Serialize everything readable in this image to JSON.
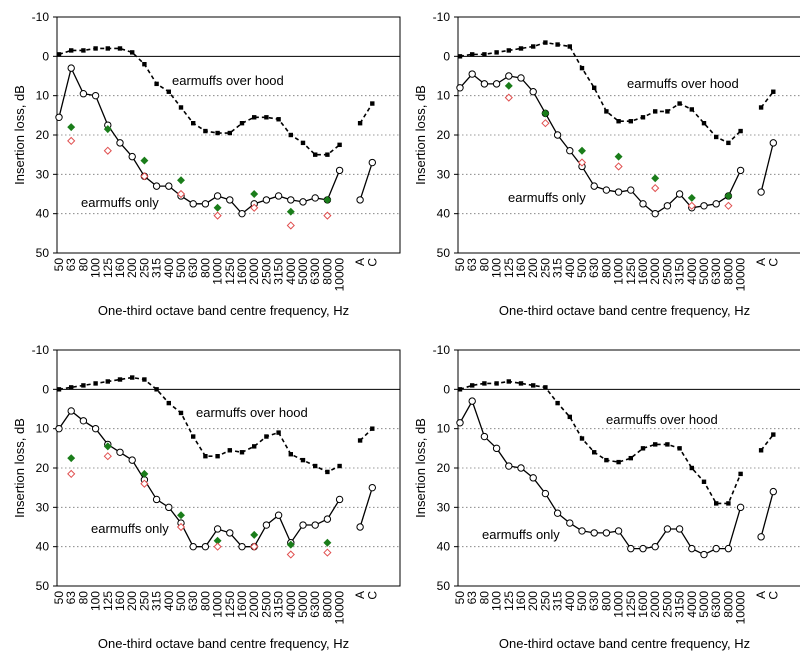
{
  "chart_data": [
    {
      "type": "line",
      "x": [
        "50",
        "63",
        "80",
        "100",
        "125",
        "160",
        "200",
        "250",
        "315",
        "400",
        "500",
        "630",
        "800",
        "1000",
        "1250",
        "1600",
        "2000",
        "2500",
        "3150",
        "4000",
        "5000",
        "6300",
        "8000",
        "10000"
      ],
      "extra_categories": [
        "A",
        "C"
      ],
      "ylabel": "Insertion loss, dB",
      "xlabel": "One-third octave band centre frequency, Hz",
      "yticks": [
        "-10",
        "0",
        "10",
        "20",
        "30",
        "40",
        "50"
      ],
      "ylim": [
        50,
        -10
      ],
      "grid": "horizontal dotted",
      "annotations": [
        "earmuffs over hood",
        "earmuffs only"
      ],
      "series": [
        {
          "key": "hood",
          "style": "dashed-squares",
          "values": [
            -0.5,
            -1.5,
            -1.5,
            -2,
            -2,
            -2,
            -1,
            2,
            7,
            9,
            13,
            17,
            19,
            19.5,
            19.5,
            17,
            15.5,
            15.5,
            16,
            20,
            22,
            25,
            25,
            22.5
          ],
          "extra": [
            17,
            12
          ]
        },
        {
          "key": "only",
          "style": "solid-circles",
          "values": [
            15.5,
            3,
            9.5,
            10,
            17.5,
            22,
            25.5,
            30.5,
            33,
            33,
            35.5,
            37.5,
            37.5,
            35.5,
            36.5,
            40,
            37.5,
            36.5,
            35.5,
            36.5,
            37,
            36,
            36.5,
            29
          ],
          "extra": [
            36.5,
            27
          ]
        },
        {
          "key": "green",
          "style": "filled-diamond",
          "points": [
            [
              1,
              18
            ],
            [
              4,
              18.5
            ],
            [
              7,
              26.5
            ],
            [
              10,
              31.5
            ],
            [
              13,
              38.5
            ],
            [
              16,
              35
            ],
            [
              19,
              39.5
            ],
            [
              22,
              36.5
            ]
          ]
        },
        {
          "key": "red",
          "style": "open-diamond",
          "points": [
            [
              1,
              21.5
            ],
            [
              4,
              24
            ],
            [
              7,
              30.5
            ],
            [
              10,
              35
            ],
            [
              13,
              40.5
            ],
            [
              16,
              38.5
            ],
            [
              19,
              43
            ],
            [
              22,
              40.5
            ]
          ]
        }
      ]
    },
    {
      "type": "line",
      "x": [
        "50",
        "63",
        "80",
        "100",
        "125",
        "160",
        "200",
        "250",
        "315",
        "400",
        "500",
        "630",
        "800",
        "1000",
        "1250",
        "1600",
        "2000",
        "2500",
        "3150",
        "4000",
        "5000",
        "6300",
        "8000",
        "10000"
      ],
      "extra_categories": [
        "A",
        "C"
      ],
      "ylabel": "Insertion loss, dB",
      "xlabel": "One-third octave band centre frequency, Hz",
      "yticks": [
        "-10",
        "0",
        "10",
        "20",
        "30",
        "40",
        "50"
      ],
      "ylim": [
        50,
        -10
      ],
      "grid": "horizontal dotted",
      "annotations": [
        "earmuffs over hood",
        "earmuffs only"
      ],
      "series": [
        {
          "key": "hood",
          "style": "dashed-squares",
          "values": [
            0,
            -0.5,
            -0.5,
            -1,
            -1.5,
            -2,
            -2.5,
            -3.5,
            -3,
            -2.5,
            3,
            8,
            14,
            16.5,
            16.5,
            15.5,
            14,
            14,
            12,
            13.5,
            17,
            20.5,
            22,
            19
          ],
          "extra": [
            13,
            9
          ]
        },
        {
          "key": "only",
          "style": "solid-circles",
          "values": [
            8,
            4.5,
            7,
            7,
            5,
            5.5,
            9,
            14.5,
            20,
            24,
            28,
            33,
            34,
            34.5,
            34,
            37.5,
            40,
            38,
            35,
            38.5,
            38,
            37.5,
            35.5,
            29
          ],
          "extra": [
            34.5,
            22
          ]
        },
        {
          "key": "green",
          "style": "filled-diamond",
          "points": [
            [
              4,
              7.5
            ],
            [
              7,
              14.5
            ],
            [
              10,
              24
            ],
            [
              13,
              25.5
            ],
            [
              16,
              31
            ],
            [
              19,
              36
            ],
            [
              22,
              35.5
            ]
          ]
        },
        {
          "key": "red",
          "style": "open-diamond",
          "points": [
            [
              4,
              10.5
            ],
            [
              7,
              17
            ],
            [
              10,
              27
            ],
            [
              13,
              28
            ],
            [
              16,
              33.5
            ],
            [
              19,
              38
            ],
            [
              22,
              38
            ]
          ]
        }
      ]
    },
    {
      "type": "line",
      "x": [
        "50",
        "63",
        "80",
        "100",
        "125",
        "160",
        "200",
        "250",
        "315",
        "400",
        "500",
        "630",
        "800",
        "1000",
        "1250",
        "1600",
        "2000",
        "2500",
        "3150",
        "4000",
        "5000",
        "6300",
        "8000",
        "10000"
      ],
      "extra_categories": [
        "A",
        "C"
      ],
      "ylabel": "Insertion loss, dB",
      "xlabel": "One-third octave band centre frequency, Hz",
      "yticks": [
        "-10",
        "0",
        "10",
        "20",
        "30",
        "40",
        "50"
      ],
      "ylim": [
        50,
        -10
      ],
      "grid": "horizontal dotted",
      "annotations": [
        "earmuffs over hood",
        "earmuffs only"
      ],
      "series": [
        {
          "key": "hood",
          "style": "dashed-squares",
          "values": [
            0,
            -0.5,
            -1,
            -1.5,
            -2,
            -2.5,
            -3,
            -2.5,
            0,
            3.5,
            6,
            12,
            17,
            17,
            15.5,
            16,
            14.5,
            12,
            11,
            16.5,
            18,
            19.5,
            21,
            19.5
          ],
          "extra": [
            13,
            10
          ]
        },
        {
          "key": "only",
          "style": "solid-circles",
          "values": [
            10,
            5.5,
            8,
            10,
            14,
            16,
            18,
            23,
            28,
            30,
            34,
            40,
            40,
            35.5,
            36.5,
            40,
            40,
            34.5,
            32,
            39,
            34.5,
            34.5,
            33,
            28
          ],
          "extra": [
            35,
            25
          ]
        },
        {
          "key": "green",
          "style": "filled-diamond",
          "points": [
            [
              1,
              17.5
            ],
            [
              4,
              14.5
            ],
            [
              7,
              21.5
            ],
            [
              10,
              32
            ],
            [
              13,
              38.5
            ],
            [
              16,
              37
            ],
            [
              19,
              39.5
            ],
            [
              22,
              39
            ]
          ]
        },
        {
          "key": "red",
          "style": "open-diamond",
          "points": [
            [
              1,
              21.5
            ],
            [
              4,
              17
            ],
            [
              7,
              24
            ],
            [
              10,
              35
            ],
            [
              13,
              40
            ],
            [
              16,
              40
            ],
            [
              19,
              42
            ],
            [
              22,
              41.5
            ]
          ]
        }
      ]
    },
    {
      "type": "line",
      "x": [
        "50",
        "63",
        "80",
        "100",
        "125",
        "160",
        "200",
        "250",
        "315",
        "400",
        "500",
        "630",
        "800",
        "1000",
        "1250",
        "1600",
        "2000",
        "2500",
        "3150",
        "4000",
        "5000",
        "6300",
        "8000",
        "10000"
      ],
      "extra_categories": [
        "A",
        "C"
      ],
      "ylabel": "Insertion loss, dB",
      "xlabel": "One-third octave band centre frequency, Hz",
      "yticks": [
        "-10",
        "0",
        "10",
        "20",
        "30",
        "40",
        "50"
      ],
      "ylim": [
        50,
        -10
      ],
      "grid": "horizontal dotted",
      "annotations": [
        "earmuffs over hood",
        "earmuffs only"
      ],
      "series": [
        {
          "key": "hood",
          "style": "dashed-squares",
          "values": [
            0,
            -1,
            -1.5,
            -1.5,
            -2,
            -1.5,
            -1,
            -0.5,
            3.5,
            7,
            12.5,
            16,
            18,
            18.5,
            17.5,
            15,
            14,
            14,
            15,
            20,
            23.5,
            29,
            29,
            21.5
          ],
          "extra": [
            15.5,
            11.5
          ]
        },
        {
          "key": "only",
          "style": "solid-circles",
          "values": [
            8.5,
            3,
            12,
            15,
            19.5,
            20,
            22.5,
            26.5,
            31.5,
            34,
            36,
            36.5,
            36.5,
            36,
            40.5,
            40.5,
            40,
            35.5,
            35.5,
            40.5,
            42,
            40.5,
            40.5,
            30
          ],
          "extra": [
            37.5,
            26
          ]
        },
        {
          "key": "green",
          "style": "filled-diamond",
          "points": []
        },
        {
          "key": "red",
          "style": "open-diamond",
          "points": []
        }
      ]
    }
  ]
}
